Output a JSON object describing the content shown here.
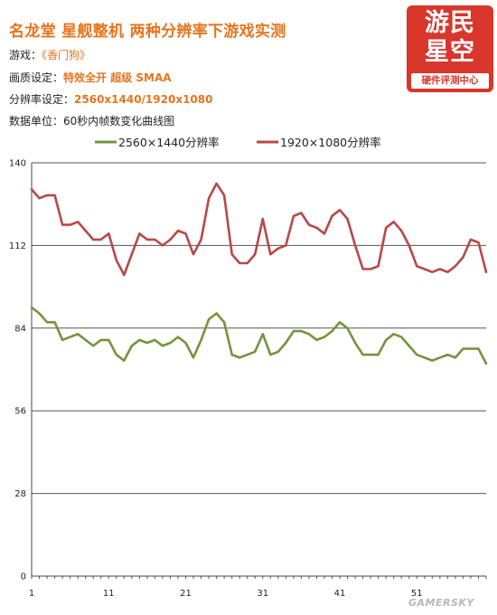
{
  "header": {
    "title": "名龙堂 星舰整机 两种分辨率下游戏实测",
    "game_label": "游戏：",
    "game_value": "《香门狗》",
    "quality_label": "画质设定：",
    "quality_value": "特效全开  超级  SMAA",
    "resolution_label": "分辨率设定：",
    "resolution_value": "2560x1440/1920x1080",
    "unit_label": "数据单位：",
    "unit_value": "60秒内帧数变化曲线图"
  },
  "logo": {
    "line1": "游民",
    "line2": "星空",
    "line3": "硬件评测中心"
  },
  "watermark": "GAMERSKY",
  "colors": {
    "series_1": "#74943c",
    "series_2": "#b84848",
    "accent": "#e8741c",
    "logo_bg": "#d9362c"
  },
  "chart_data": {
    "type": "line",
    "title": "名龙堂 星舰整机 两种分辨率下游戏实测",
    "xlabel": "",
    "ylabel": "",
    "ylim": [
      0,
      140
    ],
    "yticks": [
      0,
      28,
      56,
      84,
      112,
      140
    ],
    "xticks": [
      1,
      11,
      21,
      31,
      41,
      51
    ],
    "xlim": [
      1,
      60
    ],
    "grid": true,
    "legend": "top",
    "series": [
      {
        "name": "2560×1440分辨率",
        "color": "#74943c",
        "values": [
          91,
          89,
          86,
          86,
          80,
          81,
          82,
          80,
          78,
          80,
          80,
          75,
          73,
          78,
          80,
          79,
          80,
          78,
          79,
          81,
          79,
          74,
          80,
          87,
          89,
          86,
          75,
          74,
          75,
          76,
          82,
          75,
          76,
          79,
          83,
          83,
          82,
          80,
          81,
          83,
          86,
          84,
          79,
          75,
          75,
          75,
          80,
          82,
          81,
          78,
          75,
          74,
          73,
          74,
          75,
          74,
          77,
          77,
          77,
          72
        ]
      },
      {
        "name": "1920×1080分辨率",
        "color": "#b84848",
        "values": [
          131,
          128,
          129,
          129,
          119,
          119,
          120,
          117,
          114,
          114,
          116,
          107,
          102,
          109,
          116,
          114,
          114,
          112,
          114,
          117,
          116,
          109,
          114,
          128,
          133,
          129,
          109,
          106,
          106,
          109,
          121,
          109,
          111,
          112,
          122,
          123,
          119,
          118,
          116,
          122,
          124,
          121,
          112,
          104,
          104,
          105,
          118,
          120,
          117,
          112,
          105,
          104,
          103,
          104,
          103,
          105,
          108,
          114,
          113,
          103
        ]
      }
    ]
  }
}
